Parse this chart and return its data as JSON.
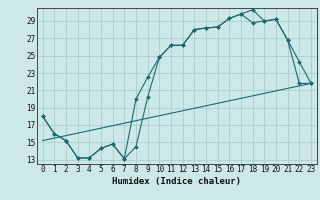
{
  "title": "",
  "xlabel": "Humidex (Indice chaleur)",
  "background_color": "#cde8e8",
  "grid_color": "#aacece",
  "line_color": "#1a6b6b",
  "xlim": [
    -0.5,
    23.5
  ],
  "ylim": [
    12.5,
    30.5
  ],
  "yticks": [
    13,
    15,
    17,
    19,
    21,
    23,
    25,
    27,
    29
  ],
  "xticks": [
    0,
    1,
    2,
    3,
    4,
    5,
    6,
    7,
    8,
    9,
    10,
    11,
    12,
    13,
    14,
    15,
    16,
    17,
    18,
    19,
    20,
    21,
    22,
    23
  ],
  "line1_x": [
    0,
    1,
    2,
    3,
    4,
    5,
    6,
    7,
    8,
    9,
    10,
    11,
    12,
    13,
    14,
    15,
    16,
    17,
    18,
    19,
    20,
    21,
    22,
    23
  ],
  "line1_y": [
    18.0,
    16.0,
    15.2,
    13.2,
    13.2,
    14.3,
    14.8,
    13.1,
    14.5,
    20.2,
    24.8,
    26.2,
    26.2,
    28.0,
    28.2,
    28.3,
    29.3,
    29.8,
    30.3,
    29.0,
    29.2,
    26.8,
    21.8,
    21.8
  ],
  "line2_x": [
    0,
    1,
    2,
    3,
    4,
    5,
    6,
    7,
    8,
    9,
    10,
    11,
    12,
    13,
    14,
    15,
    16,
    17,
    18,
    19,
    20,
    21,
    22,
    23
  ],
  "line2_y": [
    18.0,
    16.0,
    15.2,
    13.2,
    13.2,
    14.3,
    14.8,
    13.1,
    20.0,
    22.5,
    24.8,
    26.2,
    26.2,
    28.0,
    28.2,
    28.3,
    29.3,
    29.8,
    28.8,
    29.0,
    29.2,
    26.8,
    24.3,
    21.8
  ],
  "line3_x": [
    0,
    23
  ],
  "line3_y": [
    15.2,
    21.8
  ]
}
